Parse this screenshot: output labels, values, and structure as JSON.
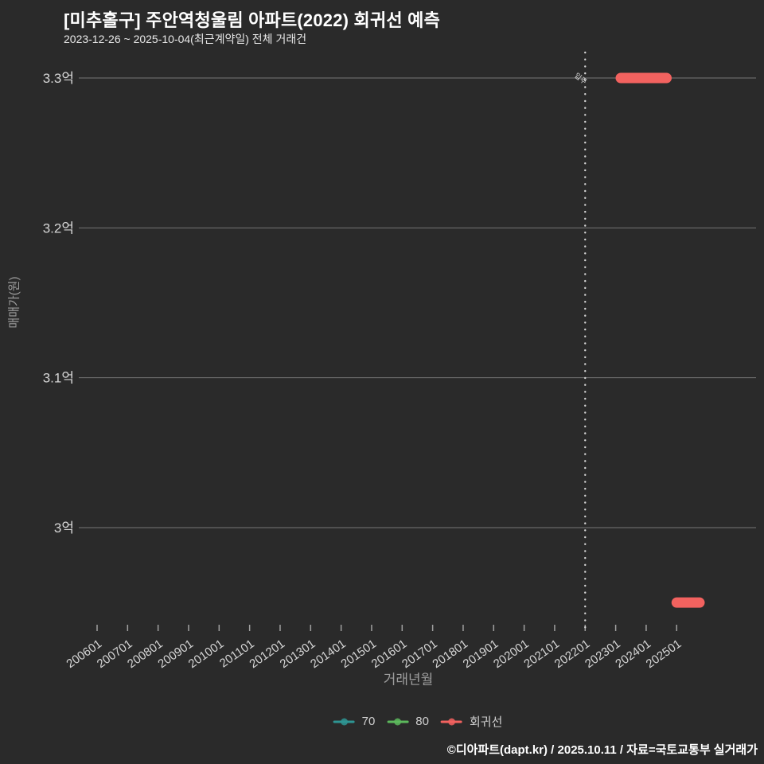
{
  "header": {
    "title": "[미추홀구] 주안역청울림 아파트(2022) 회귀선 예측",
    "subtitle": "2023-12-26 ~ 2025-10-04(최근계약일) 전체 거래건"
  },
  "footer": {
    "credit": "©디아파트(dapt.kr) / 2025.10.11 / 자료=국토교통부 실거래가"
  },
  "legend": {
    "position": "bottom-center",
    "items": [
      {
        "label": "70",
        "color": "#2e9593"
      },
      {
        "label": "80",
        "color": "#5cb85c"
      },
      {
        "label": "회귀선",
        "color": "#f2625f"
      }
    ]
  },
  "colors": {
    "background": "#2a2a2a",
    "grid": "#757575",
    "tick_label": "#d6d6d6",
    "axis_title": "#9e9e9e",
    "dotted_line": "#d8d8d8",
    "regression": "#f2625f",
    "title_text": "#ffffff"
  },
  "chart_data": {
    "type": "line",
    "title": "[미추홀구] 주안역청울림 아파트(2022) 회귀선 예측",
    "subtitle": "2023-12-26 ~ 2025-10-04(최근계약일) 전체 거래건",
    "xlabel": "거래년월",
    "ylabel": "매매가(원)",
    "grid": true,
    "x_tick_labels": [
      "200601",
      "200701",
      "200801",
      "200901",
      "201001",
      "201101",
      "201201",
      "201301",
      "201401",
      "201501",
      "201601",
      "201701",
      "201801",
      "201901",
      "202001",
      "202101",
      "202201",
      "202301",
      "202401",
      "202501"
    ],
    "y_ticks": [
      {
        "label": "3억",
        "value": 3.0
      },
      {
        "label": "3.1억",
        "value": 3.1
      },
      {
        "label": "3.2억",
        "value": 3.2
      },
      {
        "label": "3.3억",
        "value": 3.3
      }
    ],
    "ylim_eok": [
      2.93,
      3.32
    ],
    "series": [
      {
        "name": "70",
        "color": "#2e9593",
        "points": []
      },
      {
        "name": "80",
        "color": "#5cb85c",
        "points": []
      }
    ],
    "regression_line": {
      "name": "회귀선",
      "color": "#f2625f",
      "segments": [
        {
          "start": "202303",
          "end": "202409",
          "price_eok": 3.3
        },
        {
          "start": "202501",
          "end": "202510",
          "price_eok": 2.95
        }
      ]
    },
    "annotations": [
      {
        "type": "vline",
        "style": "dotted",
        "x": "202201",
        "label": "입주"
      }
    ]
  }
}
